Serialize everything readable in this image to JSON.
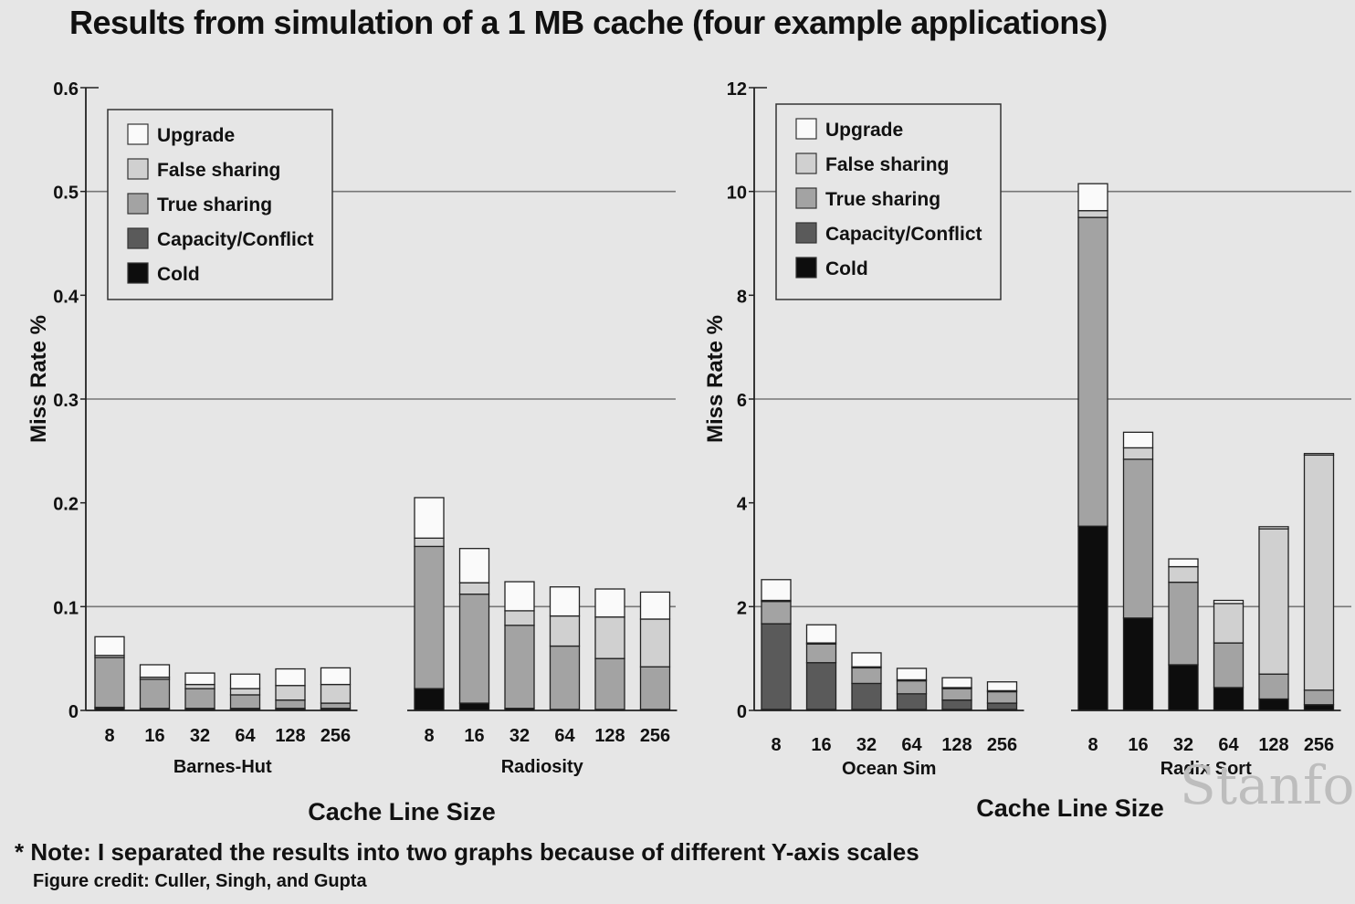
{
  "title": "Results from simulation of a 1 MB cache (four example applications)",
  "note": "* Note: I separated the results into two graphs because of different Y-axis scales",
  "credit": "Figure credit: Culler, Singh, and Gupta",
  "watermark": "Stanfo",
  "colors": {
    "Upgrade": "#fafafa",
    "False sharing": "#d0d0d0",
    "True sharing": "#a3a3a3",
    "Capacity/Conflict": "#5a5a5a",
    "Cold": "#0d0d0d",
    "gridline": "#777777"
  },
  "chart_data": [
    {
      "type": "bar",
      "stacked": true,
      "ylabel": "Miss Rate %",
      "xlabel": "Cache Line Size",
      "ylim": [
        0,
        0.6
      ],
      "yticks": [
        "0",
        "0.1",
        "0.2",
        "0.3",
        "0.4",
        "0.5",
        "0.6"
      ],
      "grid": true,
      "legend_position": "top-left",
      "legend": [
        "Upgrade",
        "False sharing",
        "True sharing",
        "Capacity/Conflict",
        "Cold"
      ],
      "stack_order": [
        "Cold",
        "Capacity/Conflict",
        "True sharing",
        "False sharing",
        "Upgrade"
      ],
      "categories": [
        "8",
        "16",
        "32",
        "64",
        "128",
        "256"
      ],
      "groups": [
        {
          "name": "Barnes-Hut",
          "bars": [
            {
              "Cold": 0.002,
              "Capacity/Conflict": 0.001,
              "True sharing": 0.048,
              "False sharing": 0.002,
              "Upgrade": 0.018
            },
            {
              "Cold": 0.001,
              "Capacity/Conflict": 0.001,
              "True sharing": 0.028,
              "False sharing": 0.002,
              "Upgrade": 0.012
            },
            {
              "Cold": 0.001,
              "Capacity/Conflict": 0.001,
              "True sharing": 0.019,
              "False sharing": 0.004,
              "Upgrade": 0.011
            },
            {
              "Cold": 0.001,
              "Capacity/Conflict": 0.001,
              "True sharing": 0.013,
              "False sharing": 0.006,
              "Upgrade": 0.014
            },
            {
              "Cold": 0.001,
              "Capacity/Conflict": 0.001,
              "True sharing": 0.008,
              "False sharing": 0.014,
              "Upgrade": 0.016
            },
            {
              "Cold": 0.001,
              "Capacity/Conflict": 0.001,
              "True sharing": 0.005,
              "False sharing": 0.018,
              "Upgrade": 0.016
            }
          ]
        },
        {
          "name": "Radiosity",
          "bars": [
            {
              "Cold": 0.021,
              "Capacity/Conflict": 0.0,
              "True sharing": 0.137,
              "False sharing": 0.008,
              "Upgrade": 0.039
            },
            {
              "Cold": 0.007,
              "Capacity/Conflict": 0.0,
              "True sharing": 0.105,
              "False sharing": 0.011,
              "Upgrade": 0.033
            },
            {
              "Cold": 0.002,
              "Capacity/Conflict": 0.0,
              "True sharing": 0.08,
              "False sharing": 0.014,
              "Upgrade": 0.028
            },
            {
              "Cold": 0.001,
              "Capacity/Conflict": 0.0,
              "True sharing": 0.061,
              "False sharing": 0.029,
              "Upgrade": 0.028
            },
            {
              "Cold": 0.001,
              "Capacity/Conflict": 0.0,
              "True sharing": 0.049,
              "False sharing": 0.04,
              "Upgrade": 0.027
            },
            {
              "Cold": 0.001,
              "Capacity/Conflict": 0.0,
              "True sharing": 0.041,
              "False sharing": 0.046,
              "Upgrade": 0.026
            }
          ]
        }
      ]
    },
    {
      "type": "bar",
      "stacked": true,
      "ylabel": "Miss Rate %",
      "xlabel": "Cache Line Size",
      "ylim": [
        0,
        12
      ],
      "yticks": [
        "0",
        "2",
        "4",
        "6",
        "8",
        "10",
        "12"
      ],
      "grid": true,
      "legend_position": "top-left",
      "legend": [
        "Upgrade",
        "False sharing",
        "True sharing",
        "Capacity/Conflict",
        "Cold"
      ],
      "stack_order": [
        "Cold",
        "Capacity/Conflict",
        "True sharing",
        "False sharing",
        "Upgrade"
      ],
      "categories": [
        "8",
        "16",
        "32",
        "64",
        "128",
        "256"
      ],
      "groups": [
        {
          "name": "Ocean Sim",
          "bars": [
            {
              "Cold": 0.02,
              "Capacity/Conflict": 1.65,
              "True sharing": 0.43,
              "False sharing": 0.02,
              "Upgrade": 0.4
            },
            {
              "Cold": 0.02,
              "Capacity/Conflict": 0.9,
              "True sharing": 0.36,
              "False sharing": 0.02,
              "Upgrade": 0.35
            },
            {
              "Cold": 0.02,
              "Capacity/Conflict": 0.5,
              "True sharing": 0.3,
              "False sharing": 0.02,
              "Upgrade": 0.27
            },
            {
              "Cold": 0.02,
              "Capacity/Conflict": 0.3,
              "True sharing": 0.25,
              "False sharing": 0.02,
              "Upgrade": 0.22
            },
            {
              "Cold": 0.02,
              "Capacity/Conflict": 0.18,
              "True sharing": 0.22,
              "False sharing": 0.02,
              "Upgrade": 0.19
            },
            {
              "Cold": 0.02,
              "Capacity/Conflict": 0.12,
              "True sharing": 0.22,
              "False sharing": 0.02,
              "Upgrade": 0.17
            }
          ]
        },
        {
          "name": "Radix Sort",
          "bars": [
            {
              "Cold": 3.55,
              "Capacity/Conflict": 0.0,
              "True sharing": 5.95,
              "False sharing": 0.13,
              "Upgrade": 0.52
            },
            {
              "Cold": 1.78,
              "Capacity/Conflict": 0.0,
              "True sharing": 3.06,
              "False sharing": 0.22,
              "Upgrade": 0.3
            },
            {
              "Cold": 0.88,
              "Capacity/Conflict": 0.0,
              "True sharing": 1.59,
              "False sharing": 0.3,
              "Upgrade": 0.15
            },
            {
              "Cold": 0.44,
              "Capacity/Conflict": 0.0,
              "True sharing": 0.86,
              "False sharing": 0.76,
              "Upgrade": 0.06
            },
            {
              "Cold": 0.22,
              "Capacity/Conflict": 0.0,
              "True sharing": 0.48,
              "False sharing": 2.8,
              "Upgrade": 0.04
            },
            {
              "Cold": 0.11,
              "Capacity/Conflict": 0.0,
              "True sharing": 0.28,
              "False sharing": 4.53,
              "Upgrade": 0.03
            }
          ]
        }
      ]
    }
  ]
}
